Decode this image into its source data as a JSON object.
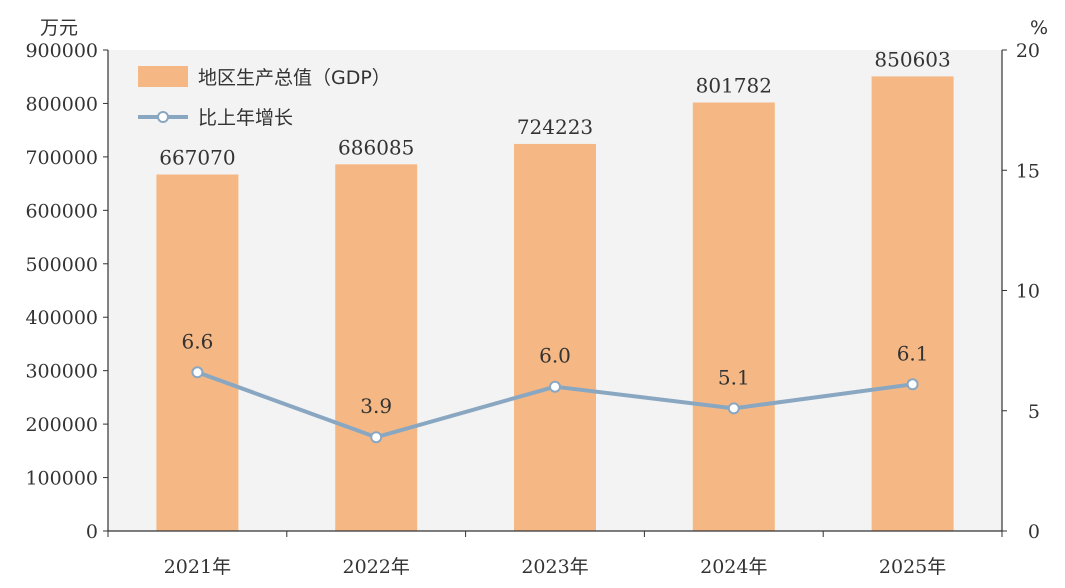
{
  "chart_data": {
    "type": "bar",
    "categories": [
      "2021年",
      "2022年",
      "2023年",
      "2024年",
      "2025年"
    ],
    "series": [
      {
        "name": "地区生产总值（GDP）",
        "type": "bar",
        "axis": "left",
        "values": [
          667070,
          686085,
          724223,
          801782,
          850603
        ],
        "labels": [
          "667070",
          "686085",
          "724223",
          "801782",
          "850603"
        ]
      },
      {
        "name": "比上年增长",
        "type": "line",
        "axis": "right",
        "values": [
          6.6,
          3.9,
          6.0,
          5.1,
          6.1
        ],
        "labels": [
          "6.6",
          "3.9",
          "6.0",
          "5.1",
          "6.1"
        ]
      }
    ],
    "left_axis": {
      "unit": "万元",
      "ylim": [
        0,
        900000
      ],
      "ticks": [
        "0",
        "100000",
        "200000",
        "300000",
        "400000",
        "500000",
        "600000",
        "700000",
        "800000",
        "900000"
      ]
    },
    "right_axis": {
      "unit": "%",
      "ylim": [
        0,
        20
      ],
      "ticks": [
        "0",
        "5",
        "10",
        "15",
        "20"
      ]
    },
    "legend": "top-left",
    "grid": false,
    "colors": {
      "bar": "#F5B884",
      "line": "#8AA7C2",
      "plot_bg": "#F3F3F3",
      "marker_fill": "#ffffff"
    }
  }
}
